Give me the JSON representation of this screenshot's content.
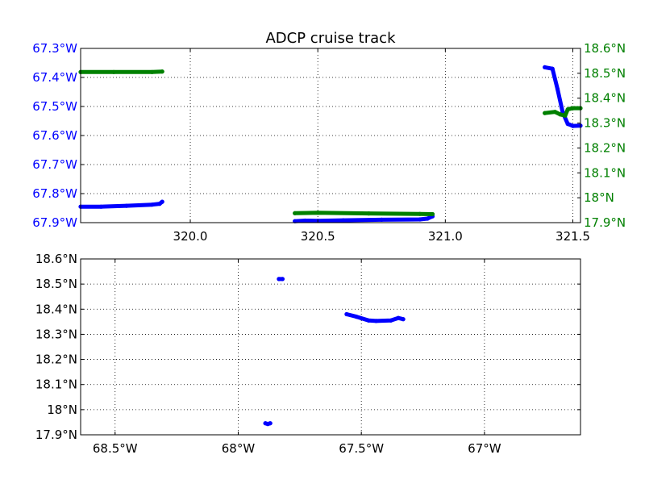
{
  "figure_title": "ADCP cruise track",
  "chart_data": [
    {
      "type": "line",
      "title": "ADCP cruise track",
      "xlabel": "",
      "xlim": [
        319.57,
        321.53
      ],
      "xticks": [
        320.0,
        320.5,
        321.0,
        321.5
      ],
      "xtick_labels": [
        "320.0",
        "320.5",
        "321.0",
        "321.5"
      ],
      "grid": true,
      "left_axis": {
        "ylabel": "",
        "color": "#0000ff",
        "ylim": [
          -67.9,
          -67.3
        ],
        "ticks": [
          -67.3,
          -67.4,
          -67.5,
          -67.6,
          -67.7,
          -67.8,
          -67.9
        ],
        "tick_labels": [
          "67.3°W",
          "67.4°W",
          "67.5°W",
          "67.6°W",
          "67.7°W",
          "67.8°W",
          "67.9°W"
        ]
      },
      "right_axis": {
        "ylabel": "",
        "color": "#008000",
        "ylim": [
          17.9,
          18.6
        ],
        "ticks": [
          18.6,
          18.5,
          18.4,
          18.3,
          18.2,
          18.1,
          18.0,
          17.9
        ],
        "tick_labels": [
          "18.6°N",
          "18.5°N",
          "18.4°N",
          "18.3°N",
          "18.2°N",
          "18.1°N",
          "18°N",
          "17.9°N"
        ]
      },
      "series": [
        {
          "axis": "left",
          "color": "#0000ff",
          "segments": [
            [
              [
                319.57,
                -67.845
              ],
              [
                319.65,
                -67.845
              ],
              [
                319.75,
                -67.842
              ],
              [
                319.85,
                -67.838
              ],
              [
                319.88,
                -67.835
              ],
              [
                319.89,
                -67.828
              ]
            ],
            [
              [
                320.41,
                -67.895
              ],
              [
                320.45,
                -67.893
              ],
              [
                320.5,
                -67.894
              ],
              [
                320.6,
                -67.892
              ],
              [
                320.75,
                -67.89
              ],
              [
                320.9,
                -67.889
              ],
              [
                320.93,
                -67.886
              ],
              [
                320.95,
                -67.878
              ]
            ],
            [
              [
                321.39,
                -67.365
              ],
              [
                321.42,
                -67.37
              ],
              [
                321.44,
                -67.44
              ],
              [
                321.46,
                -67.52
              ],
              [
                321.48,
                -67.56
              ],
              [
                321.5,
                -67.567
              ],
              [
                321.53,
                -67.566
              ]
            ]
          ]
        },
        {
          "axis": "right",
          "color": "#008000",
          "segments": [
            [
              [
                319.57,
                18.505
              ],
              [
                319.7,
                18.505
              ],
              [
                319.85,
                18.505
              ],
              [
                319.89,
                18.507
              ]
            ],
            [
              [
                320.41,
                17.938
              ],
              [
                320.5,
                17.94
              ],
              [
                320.7,
                17.937
              ],
              [
                320.9,
                17.935
              ],
              [
                320.95,
                17.934
              ]
            ],
            [
              [
                321.39,
                18.34
              ],
              [
                321.43,
                18.345
              ],
              [
                321.45,
                18.335
              ],
              [
                321.47,
                18.33
              ],
              [
                321.48,
                18.355
              ],
              [
                321.5,
                18.36
              ],
              [
                321.53,
                18.36
              ]
            ]
          ]
        }
      ]
    },
    {
      "type": "scatter",
      "title": "",
      "xlabel": "",
      "ylabel": "",
      "xlim": [
        -68.64,
        -66.61
      ],
      "ylim": [
        17.9,
        18.6
      ],
      "xticks": [
        -68.5,
        -68.0,
        -67.5,
        -67.0
      ],
      "xtick_labels": [
        "68.5°W",
        "68°W",
        "67.5°W",
        "67°W"
      ],
      "yticks": [
        18.6,
        18.5,
        18.4,
        18.3,
        18.2,
        18.1,
        18.0,
        17.9
      ],
      "ytick_labels": [
        "18.6°N",
        "18.5°N",
        "18.4°N",
        "18.3°N",
        "18.2°N",
        "18.1°N",
        "18°N",
        "17.9°N"
      ],
      "grid": true,
      "series": [
        {
          "color": "#0000ff",
          "segments": [
            [
              [
                -67.835,
                18.52
              ],
              [
                -67.82,
                18.52
              ]
            ],
            [
              [
                -67.56,
                18.38
              ],
              [
                -67.52,
                18.37
              ],
              [
                -67.47,
                18.355
              ],
              [
                -67.44,
                18.353
              ],
              [
                -67.38,
                18.355
              ],
              [
                -67.35,
                18.365
              ],
              [
                -67.33,
                18.36
              ]
            ],
            [
              [
                -67.89,
                17.946
              ],
              [
                -67.88,
                17.943
              ],
              [
                -67.87,
                17.946
              ]
            ]
          ]
        }
      ]
    }
  ]
}
